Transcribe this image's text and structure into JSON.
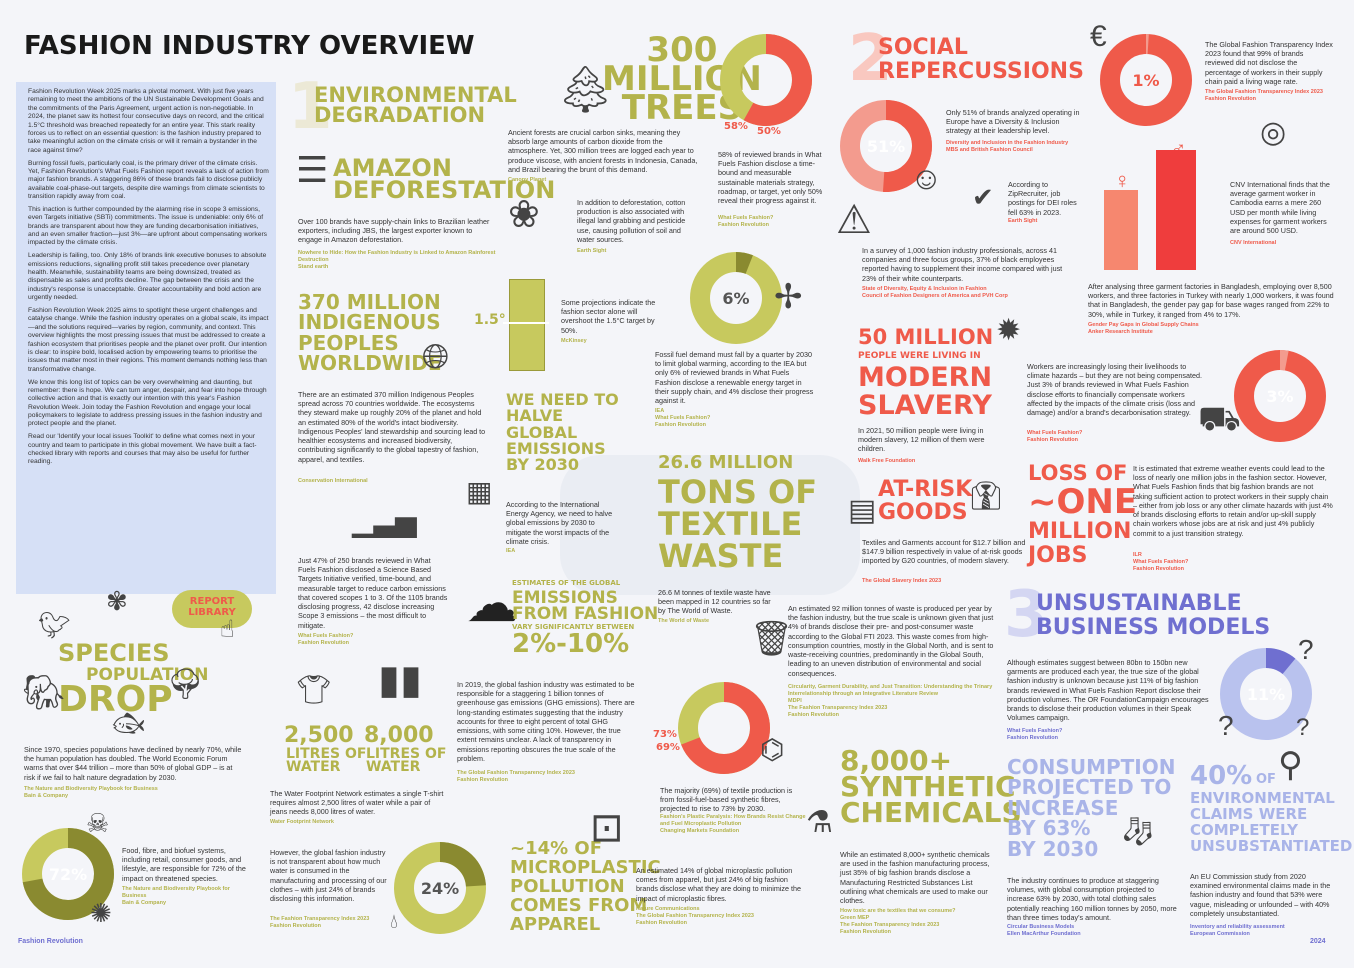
{
  "header": {
    "title": "FASHION INDUSTRY OVERVIEW"
  },
  "intro": {
    "paragraphs": [
      "Fashion Revolution Week 2025 marks a pivotal moment. With just five years remaining to meet the ambitions of the UN Sustainable Development Goals and the commitments of the Paris Agreement, urgent action is non-negotiable. In 2024, the planet saw its hottest four consecutive days on record, and the critical 1.5°C threshold was breached repeatedly for an entire year. This stark reality forces us to reflect on an essential question: is the fashion industry prepared to take meaningful action on the climate crisis or will it remain a bystander in the race against time?",
      "Burning fossil fuels, particularly coal, is the primary driver of the climate crisis. Yet, Fashion Revolution's What Fuels Fashion report reveals a lack of action from major fashion brands. A staggering 86% of these brands fail to disclose publicly available coal-phase-out targets, despite dire warnings from climate scientists to transition rapidly away from coal.",
      "This inaction is further compounded by the alarming rise in scope 3 emissions, even Targets initiative (SBTi) commitments. The issue is undeniable: only 6% of brands are transparent about how they are funding decarbonisation initiatives, and an even smaller fraction—just 3%—are upfront about compensating workers impacted by the climate crisis.",
      "Leadership is failing, too. Only 18% of brands link executive bonuses to absolute emissions reductions, signalling profit still takes precedence over planetary health. Meanwhile, sustainability teams are being downsized, treated as dispensable as sales and profits decline. The gap between the crisis and the industry's response is unacceptable. Greater accountability and bold action are urgently needed.",
      "Fashion Revolution Week 2025 aims to spotlight these urgent challenges and catalyse change. While the fashion industry operates on a global scale, its impact—and the solutions required—varies by region, community, and context. This overview highlights the most pressing issues that must be addressed to create a fashion ecosystem that prioritises people and the planet over profit. Our intention is clear: to inspire bold, localised action by empowering teams to prioritise the issues that matter most in their regions. This moment demands nothing less than transformative change.",
      "We know this long list of topics can be very overwhelming and daunting, but remember: there is hope. We can turn anger, despair, and fear into hope through collective action and that is exactly our intention with this year's Fashion Revolution Week. Join today the Fashion Revolution and engage your local policymakers to legislate to address pressing issues in the fashion industry and protect people and the planet.",
      "Read our 'Identify your local issues Toolkit' to define what comes next in your country and team to participate in this global movement. We have built a fact-checked library with reports and courses that may also be useful for further reading."
    ]
  },
  "report_library": {
    "label": "REPORT\nLIBRARY"
  },
  "footer": {
    "left": "Fashion Revolution",
    "right": "2024"
  },
  "sections": {
    "env": {
      "num": "1",
      "title": "ENVIRONMENTAL\nDEGRADATION"
    },
    "social": {
      "num": "2",
      "title": "SOCIAL\nREPERCUSSIONS"
    },
    "business": {
      "num": "3",
      "title": "UNSUSTAINABLE\nBUSINESS MODELS"
    }
  },
  "amazon": {
    "title": "AMAZON\nDEFORESTATION",
    "text": "Over 100 brands have supply-chain links to Brazilian leather exporters, including JBS, the largest exporter known to engage in Amazon deforestation.",
    "src": "Nowhere to Hide: How the Fashion Industry is Linked to Amazon Rainforest Destruction\nStand earth"
  },
  "indigenous": {
    "title": "370 MILLION\nINDIGENOUS\nPEOPLES\nWORLDWIDE",
    "text": "There are an estimated 370 million Indigenous Peoples spread across 70 countries worldwide. The ecosystems they steward make up roughly 20% of the planet and hold an estimated 80% of the world's intact biodiversity. Indigenous Peoples' land stewardship and sourcing lead to healthier ecosystems and increased biodiversity, contributing significantly to the global tapestry of fashion, apparel, and textiles.",
    "src": "Conservation International"
  },
  "sbti": {
    "text": "Just 47% of 250 brands reviewed in What Fuels Fashion disclosed a Science Based Targets Initiative verified, time-bound, and measurable target to reduce carbon emissions that covered scopes 1 to 3. Of the 1105 brands disclosing progress, 42 disclose increasing Scope 3 emissions – the most difficult to mitigate.",
    "src": "What Fuels Fashion?\nFashion Revolution"
  },
  "species": {
    "title_a": "SPECIES",
    "title_b": "POPULATION",
    "title_c": "DROP",
    "text": "Since 1970, species populations have declined by nearly 70%, while the human population has doubled. The World Economic Forum warns that over $44 trillion – more than 50% of global GDP – is at risk if we fail to halt nature degradation by 2030.",
    "src": "The Nature and Biodiversity Playbook for Business\nBain & Company"
  },
  "biodiv72": {
    "value": "72%",
    "text": "Food, fibre, and biofuel systems, including retail, consumer goods, and lifestyle, are responsible for 72% of the impact on threatened species.",
    "src": "The Nature and Biodiversity Playbook for Business\nBain & Company"
  },
  "water": {
    "tshirt_value": "2,500",
    "tshirt_unit": "LITRES OF\nWATER",
    "jeans_value": "8,000",
    "jeans_unit": "LITRES OF\nWATER",
    "text": "The Water Footprint Network estimates a single T-shirt requires almost 2,500 litres of water while a pair of jeans needs 8,000 litres of water.",
    "src": "Water Footprint Network"
  },
  "water24": {
    "value": "24%",
    "text": "However, the global fashion industry is not transparent about how much water is consumed in the manufacturing and processing of our clothes – with just 24% of brands disclosing this information.",
    "src": "The Fashion Transparency Index 2023\nFashion Revolution"
  },
  "trees": {
    "title": "300\nMILLION\nTREES",
    "text": "Ancient forests are crucial carbon sinks, meaning they absorb large amounts of carbon dioxide from the atmosphere. Yet, 300 million trees are logged each year to produce viscose, with ancient forests in Indonesia, Canada, and Brazil bearing the brunt of this demand.",
    "src": "Canopy Planet"
  },
  "donut58": {
    "label_a": "58%",
    "label_b": "50%",
    "text": "58% of reviewed brands in What Fuels Fashion disclose a time-bound and measurable sustainable materials strategy, roadmap, or target, yet only 50% reveal their progress against it.",
    "src": "What Fuels Fashion?\nFashion Revolution"
  },
  "cotton": {
    "text": "In addition to deforestation, cotton production is also associated with illegal land grabbing and pesticide use, causing pollution of soil and water sources.",
    "src": "Earth Sight"
  },
  "overshoot": {
    "label": "1.5°",
    "text": "Some projections indicate the fashion sector alone will overshoot the 1.5°C target by 50%.",
    "src": "McKinsey"
  },
  "renew6": {
    "value": "6%",
    "text": "Fossil fuel demand must fall by a quarter by 2030 to limit global warming, according to the IEA but only 6% of reviewed brands in What Fuels Fashion disclose a renewable energy target in their supply chain, and 4% disclose their progress against it.",
    "src": "IEA\nWhat Fuels Fashion?\nFashion Revolution"
  },
  "halve": {
    "title": "WE NEED TO\nHALVE\nGLOBAL\nEMISSIONS\nBY 2030",
    "text": "According to the International Energy Agency, we need to halve global emissions by 2030 to mitigate the worst impacts of the climate crisis.",
    "src": "IEA"
  },
  "textile": {
    "title_a": "26.6 MILLION",
    "title_b": "TONS OF\nTEXTILE\nWASTE",
    "text": "26.6 M tonnes of textile waste have been mapped in 12 countries so far by The World of Waste.",
    "src": "The World of Waste"
  },
  "estimates": {
    "kicker": "ESTIMATES OF THE GLOBAL",
    "title": "EMISSIONS\nFROM FASHION",
    "sub": "VARY SIGNIFICANTLY BETWEEN",
    "range": "2%-10%"
  },
  "ghg": {
    "text": "In 2019, the global fashion industry was estimated to be responsible for a staggering 1 billion tonnes of greenhouse gas emissions (GHG emissions). There are long-standing estimates suggesting that the industry accounts for three to eight percent of total GHG emissions, with some citing 10%. However, the true extent remains unclear. A lack of transparency in emissions reporting obscures the true scale of the problem.",
    "src": "The Global Fashion Transparency Index 2023\nFashion Revolution"
  },
  "waste92": {
    "text": "An estimated 92 million tonnes of waste is produced per year by the fashion industry, but the true scale is unknown given that just 4% of brands disclose their pre- and post-consumer waste according to the Global FTI 2023. This waste comes from high-consumption countries, mostly in the Global North, and is sent to waste-receiving countries, predominantly in the Global South, leading to an uneven distribution of environmental and social consequences.",
    "src": "Circularity, Garment Durability, and Just Transition: Understanding the Trinary Interrelationship through an Integrative Literature Review\nMDPI\nThe Fashion Transparency Index 2023\nFashion Revolution"
  },
  "synthetic69": {
    "label_a": "73%",
    "label_b": "69%",
    "text": "The majority (69%) of textile production is from fossil-fuel-based synthetic fibres, projected to rise to 73% by 2030.",
    "src": "Fashion's Plastic Paralysis: How Brands Resist Change and Fuel Microplastic Pollution\nChanging Markets Foundation"
  },
  "microplastic": {
    "title": "~14% OF\nMICROPLASTIC\nPOLLUTION\nCOMES FROM\nAPPAREL",
    "text": "An estimated 14% of global microplastic pollution comes from apparel, but just 24% of big fashion brands disclose what they are doing to minimize the impact of microplastic fibres.",
    "src": "Nature Communications\nThe Global Fashion Transparency Index 2023\nFashion Revolution"
  },
  "chemicals": {
    "title": "8,000+\nSYNTHETIC\nCHEMICALS",
    "text": "While an estimated 8,000+ synthetic chemicals are used in the fashion manufacturing process, just 35% of big fashion brands disclose a Manufacturing Restricted Substances List outlining what chemicals are used to make our clothes.",
    "src": "How toxic are the textiles that we consume?\nGreen MEP\nThe Fashion Transparency Index 2023\nFashion Revolution"
  },
  "diversity51": {
    "value": "51%",
    "text": "Only 51% of brands analyzed operating in Europe have a Diversity & Inclusion strategy at their leadership level.",
    "src": "Diversity and Inclusion in the Fashion Industry\nMBS and British Fashion Council"
  },
  "dei": {
    "text": "According to ZipRecruiter, job postings for DEI roles fell 63% in 2023.",
    "src": "Earth Sight"
  },
  "survey": {
    "text": "In a survey of 1,000 fashion industry professionals, across 41 companies and three focus groups, 37% of black employees reported having to supplement their income compared with just 23% of their white counterparts.",
    "src": "State of Diversity, Equity & Inclusion in Fashion\nCouncil of Fashion Designers of America and PVH Corp"
  },
  "living1": {
    "value": "1%",
    "text": "The Global Fashion Transparency Index 2023 found that 99% of brands reviewed did not disclose the percentage of workers in their supply chain paid a living wage rate.",
    "src": "The Global Fashion Transparency Index 2023\nFashion Revolution"
  },
  "cnv": {
    "text": "CNV International finds that the average garment worker in Cambodia earns a mere 260 USD per month while living expenses for garment workers are around 500 USD.",
    "src": "CNV International"
  },
  "gender": {
    "text": "After analysing three garment factories in Bangladesh, employing over 8,500 workers, and three factories in Turkey with nearly 1,000 workers, it was found that in Bangladesh, the gender pay gap for base wages ranged from 22% to 30%, while in Turkey, it ranged from 4% to 17%.",
    "src": "Gender Pay Gaps in Global Supply Chains\nAnker Research Institute"
  },
  "slavery": {
    "title_a": "50 MILLION",
    "title_b": "PEOPLE WERE LIVING IN",
    "title_c": "MODERN\nSLAVERY",
    "text": "In 2021, 50 million people were living in modern slavery, 12 million of them were children.",
    "src": "Walk Free Foundation"
  },
  "compensate3": {
    "value": "3%",
    "text": "Workers are increasingly losing their livelihoods to climate hazards – but they are not being compensated. Just 3% of brands reviewed in What Fuels Fashion disclose efforts to financially compensate workers affected by the impacts of the climate crisis (loss and damage) and/or a brand's decarbonisation strategy.",
    "src": "What Fuels Fashion?\nFashion Revolution"
  },
  "atrisk": {
    "title": "AT-RISK\nGOODS",
    "text": "Textiles and Garments account for $12.7 billion and $147.9 billion respectively in value of at-risk goods imported by G20 countries, of modern slavery.",
    "src": "The Global Slavery Index 2023"
  },
  "jobs": {
    "title_a": "LOSS OF",
    "title_b": "~ONE",
    "title_c": "MILLION\nJOBS",
    "text": "It is estimated that extreme weather events could lead to the loss of nearly one million jobs in the fashion sector. However, What Fuels Fashion finds that big fashion brands are not taking sufficient action to protect workers in their supply chain – either from job loss or any other climate hazards with just 4% of brands disclosing efforts to retain and/or up-skill supply chain workers whose jobs are at risk and just 4% publicly commit to a just transition strategy.",
    "src": "ILR\nWhat Fuels Fashion?\nFashion Revolution"
  },
  "volumes11": {
    "value": "11%",
    "text": "Although estimates suggest between 80bn to 150bn new garments are produced each year, the true size of the global fashion industry is unknown because just 11% of big fashion brands reviewed in What Fuels Fashion Report disclose their production volumes. The OR FoundationCampaign encourages brands to disclose their production volumes in their Speak Volumes campaign.",
    "src": "What Fuels Fashion?\nFashion Revolution"
  },
  "consumption": {
    "title": "CONSUMPTION\nPROJECTED TO\nINCREASE\nBY 63%\nBY 2030",
    "text": "The industry continues to produce at staggering volumes, with global consumption projected to increase 63% by 2030, with total clothing sales potentially reaching 160 million tonnes by 2050, more than three times today's amount.",
    "src": "Circular Business Models\nEllen MacArthur Foundation"
  },
  "claims": {
    "title_a": "40%",
    "title_b": "OF",
    "title_c": "ENVIRONMENTAL\nCLAIMS WERE\nCOMPLETELY\nUNSUBSTANTIATED",
    "text": "An EU Commission study from 2020 examined environmental claims made in the fashion industry and found that 53% were vague, misleading or unfounded – with 40% completely unsubstantiated.",
    "src": "Inventory and reliability assessment\nEuropean Commission"
  },
  "colors": {
    "olive": "#b3b34b",
    "red": "#ef5a4a",
    "blue": "#6f6fd0",
    "lightblue": "#a9b4e8",
    "dark_olive": "#7a7a2a"
  },
  "icons": [
    "log-icon",
    "tree-icon",
    "cotton-icon",
    "globe-icon",
    "calendar-icon",
    "chart-icon",
    "wind-turbine-icon",
    "bee-icon",
    "bird-icon",
    "elephant-icon",
    "fish-icon",
    "skull-icon",
    "turtle-icon",
    "tshirt-icon",
    "jeans-icon",
    "drop-icon",
    "smoke-icon",
    "trash-icon",
    "molecule-icon",
    "washing-machine-icon",
    "flask-icon",
    "face-icon",
    "warning-icon",
    "checkmark-icon",
    "money-hand-icon",
    "coins-icon",
    "female-icon",
    "male-icon",
    "shout-icon",
    "tractor-icon",
    "shirt-icon",
    "fabric-icon",
    "sock-icon",
    "magnifier-icon",
    "question-icon",
    "hand-pointer-icon"
  ]
}
